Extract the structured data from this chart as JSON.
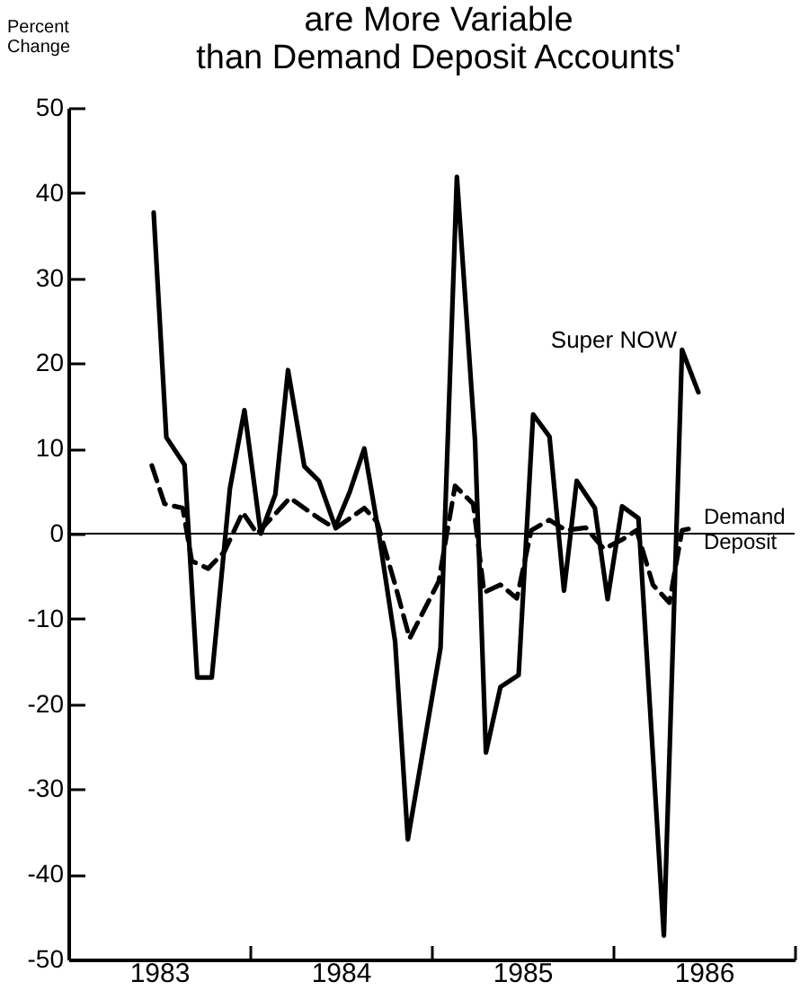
{
  "chart_data": {
    "type": "line",
    "title": "are More Variable than Demand Deposit Accounts'",
    "ylabel": "Percent Change",
    "xlim": [
      1983.0,
      1987.0
    ],
    "xticks": [
      {
        "value": 1983.5,
        "label": "1983"
      },
      {
        "value": 1984,
        "label": null
      },
      {
        "value": 1984.5,
        "label": "1984"
      },
      {
        "value": 1985,
        "label": null
      },
      {
        "value": 1985.5,
        "label": "1985"
      },
      {
        "value": 1986,
        "label": null
      },
      {
        "value": 1986.5,
        "label": "1986"
      },
      {
        "value": 1987,
        "label": null
      }
    ],
    "ylim": [
      -50,
      50
    ],
    "yticks": [
      -50,
      -40,
      -30,
      -20,
      -10,
      0,
      10,
      20,
      30,
      40,
      50
    ],
    "grid": false,
    "marker": "none",
    "ref_lines": [
      {
        "axis": "y",
        "value": 0,
        "color": "#000000"
      }
    ],
    "series": [
      {
        "name": "Super NOW",
        "color": "#000000",
        "line_style": "solid",
        "x": [
          1983.47,
          1983.54,
          1983.64,
          1983.71,
          1983.79,
          1983.89,
          1983.97,
          1984.06,
          1984.14,
          1984.21,
          1984.3,
          1984.38,
          1984.47,
          1984.55,
          1984.63,
          1984.71,
          1984.8,
          1984.87,
          1985.05,
          1985.14,
          1985.24,
          1985.3,
          1985.38,
          1985.48,
          1985.56,
          1985.65,
          1985.73,
          1985.8,
          1985.9,
          1985.97,
          1986.05,
          1986.14,
          1986.28,
          1986.38,
          1986.47
        ],
        "values": [
          37.7,
          11.3,
          8.1,
          -16.9,
          -16.9,
          5.3,
          14.5,
          0,
          4.6,
          19.2,
          7.9,
          6.2,
          0.8,
          4.9,
          10,
          0,
          -12.7,
          -35.9,
          -13.4,
          41.9,
          10.9,
          -25.7,
          -18,
          -16.6,
          14,
          11.4,
          -6.7,
          6.2,
          3,
          -7.7,
          3.2,
          1.8,
          -47.2,
          21.6,
          16.6
        ]
      },
      {
        "name": "Demand Deposit",
        "color": "#000000",
        "line_style": "dashed",
        "x": [
          1983.46,
          1983.53,
          1983.63,
          1983.68,
          1983.77,
          1983.86,
          1983.96,
          1984.04,
          1984.22,
          1984.38,
          1984.47,
          1984.63,
          1984.7,
          1984.8,
          1984.88,
          1985.04,
          1985.13,
          1985.23,
          1985.29,
          1985.38,
          1985.47,
          1985.55,
          1985.65,
          1985.74,
          1985.85,
          1985.95,
          1986.05,
          1986.13,
          1986.22,
          1986.31,
          1986.38,
          1986.45
        ],
        "values": [
          8,
          3.5,
          3,
          -3.2,
          -4.1,
          -2.1,
          2.5,
          0,
          4.2,
          1.8,
          0.6,
          3,
          1.4,
          -6,
          -12.3,
          -5.6,
          5.6,
          3.5,
          -6.9,
          -6,
          -7.6,
          0.4,
          1.6,
          0.4,
          0.7,
          -1.8,
          -0.7,
          0.4,
          -6,
          -8.1,
          0.4,
          0.7
        ]
      }
    ]
  }
}
